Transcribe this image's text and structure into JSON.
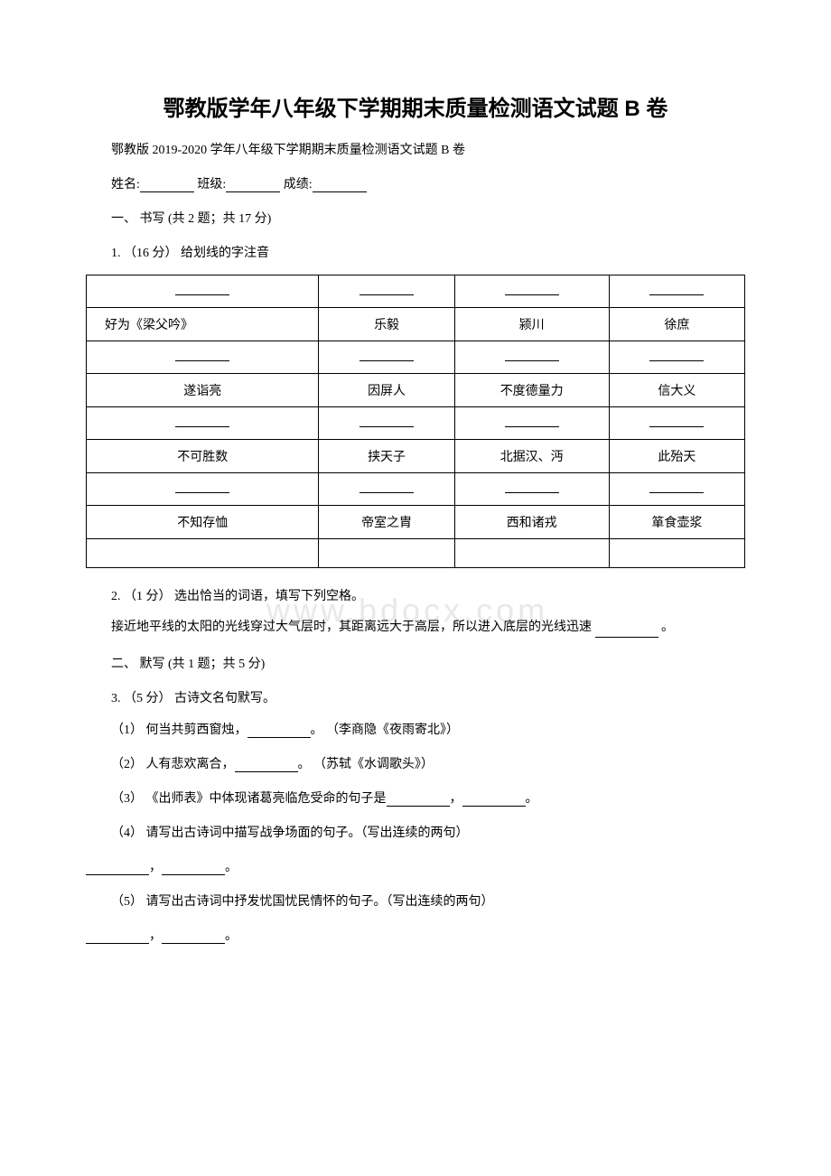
{
  "title": "鄂教版学年八年级下学期期末质量检测语文试题 B 卷",
  "subtitle": "鄂教版 2019-2020 学年八年级下学期期末质量检测语文试题 B 卷",
  "info": {
    "name_label": "姓名:",
    "class_label": "班级:",
    "score_label": "成绩:"
  },
  "section1": {
    "header": "一、 书写 (共 2 题；共 17 分)",
    "q1": {
      "prompt": "1. （16 分） 给划线的字注音",
      "table": {
        "rows": [
          {
            "type": "blank"
          },
          {
            "type": "text",
            "cells": [
              "好为《梁父吟》",
              "乐毅",
              "颍川",
              "徐庶"
            ]
          },
          {
            "type": "blank"
          },
          {
            "type": "text",
            "cells": [
              "遂诣亮",
              "因屏人",
              "不度德量力",
              "信大义"
            ]
          },
          {
            "type": "blank"
          },
          {
            "type": "text",
            "cells": [
              "不可胜数",
              "挟天子",
              "北据汉、沔",
              "此殆天"
            ]
          },
          {
            "type": "blank"
          },
          {
            "type": "text",
            "cells": [
              "不知存恤",
              "帝室之胄",
              "西和诸戎",
              "箪食壶浆"
            ]
          },
          {
            "type": "empty"
          }
        ],
        "first_cell_left": true
      }
    },
    "q2": {
      "prompt": "2. （1 分） 选出恰当的词语，填写下列空格。",
      "body": "接近地平线的太阳的光线穿过大气层时，其距离远大于高层，所以进入底层的光线迅速 ",
      "suffix": " 。"
    }
  },
  "section2": {
    "header": "二、 默写 (共 1 题；共 5 分)",
    "q3": {
      "prompt": "3. （5 分） 古诗文名句默写。",
      "items": [
        {
          "pre": "（1） 何当共剪西窗烛，",
          "post": "。 （李商隐《夜雨寄北》）"
        },
        {
          "pre": "（2） 人有悲欢离合，",
          "post": "。 （苏轼《水调歌头》）"
        },
        {
          "pre": "（3） 《出师表》中体现诸葛亮临危受命的句子是",
          "mid": "，",
          "post": "。"
        },
        {
          "pre": "（4） 请写出古诗词中描写战争场面的句子。（写出连续的两句）",
          "answer": true
        },
        {
          "pre": "（5） 请写出古诗词中抒发忧国忧民情怀的句子。（写出连续的两句）",
          "answer": true
        }
      ]
    }
  },
  "watermark": "www.bdocx.com"
}
